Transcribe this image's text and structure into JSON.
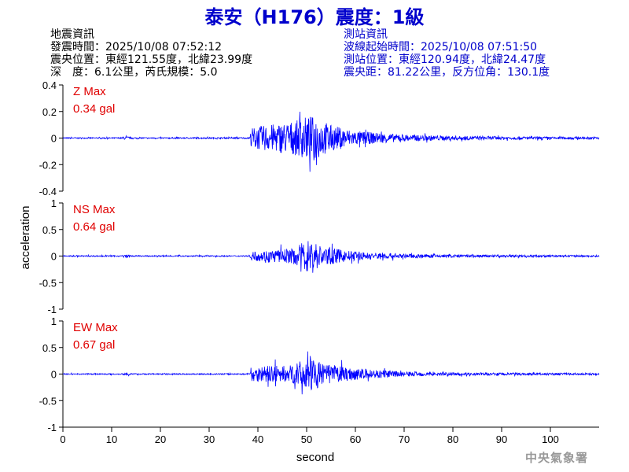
{
  "title": "泰安（H176）震度：1級",
  "quake_info": {
    "heading": "地震資訊",
    "origin_time": "發震時間：2025/10/08 07:52:12",
    "epicenter": "震央位置：東經121.55度，北緯23.99度",
    "depth_magnitude": "深　度：6.1公里，芮氏規模：5.0"
  },
  "station_info": {
    "heading": "測站資訊",
    "wave_start": "波線起始時間：2025/10/08 07:51:50",
    "station_location": "測站位置：東經120.94度，北緯24.47度",
    "distance_azimuth": "震央距：81.22公里，反方位角：130.1度"
  },
  "agency": "中央氣象署",
  "colors": {
    "title": "#0000cc",
    "trace": "#0000ff",
    "max_label": "#e00000",
    "station_info": "#0000cc"
  },
  "chart_data": {
    "type": "line",
    "xlabel": "second",
    "ylabel": "acceleration",
    "x_range": [
      0,
      110
    ],
    "x_ticks": [
      0,
      10,
      20,
      30,
      40,
      50,
      60,
      70,
      80,
      90,
      100
    ],
    "panels": [
      {
        "component": "Z",
        "max_name": "Z Max",
        "max_value": "0.34 gal",
        "ylim": [
          -0.4,
          0.4
        ],
        "yticks": [
          -0.4,
          -0.2,
          0,
          0.2,
          0.4
        ],
        "ytick_labels": [
          "-0.4",
          "-0.2",
          "0",
          "0.2",
          "0.4"
        ],
        "envelope": [
          [
            0,
            0.008
          ],
          [
            12,
            0.008
          ],
          [
            12.5,
            0.02
          ],
          [
            13.5,
            0.02
          ],
          [
            14,
            0.008
          ],
          [
            38.3,
            0.01
          ],
          [
            38.7,
            0.14
          ],
          [
            40,
            0.16
          ],
          [
            44,
            0.2
          ],
          [
            48,
            0.24
          ],
          [
            50,
            0.3
          ],
          [
            52,
            0.3
          ],
          [
            55,
            0.18
          ],
          [
            60,
            0.1
          ],
          [
            65,
            0.07
          ],
          [
            70,
            0.045
          ],
          [
            80,
            0.03
          ],
          [
            90,
            0.022
          ],
          [
            100,
            0.018
          ],
          [
            110,
            0.015
          ]
        ]
      },
      {
        "component": "NS",
        "max_name": "NS Max",
        "max_value": "0.64 gal",
        "ylim": [
          -1,
          1
        ],
        "yticks": [
          -1,
          -0.5,
          0,
          0.5,
          1
        ],
        "ytick_labels": [
          "-1",
          "-0.5",
          "0",
          "0.5",
          "1"
        ],
        "envelope": [
          [
            0,
            0.02
          ],
          [
            12,
            0.02
          ],
          [
            12.5,
            0.04
          ],
          [
            13.5,
            0.04
          ],
          [
            14,
            0.02
          ],
          [
            38.3,
            0.02
          ],
          [
            38.7,
            0.15
          ],
          [
            42,
            0.2
          ],
          [
            47,
            0.25
          ],
          [
            50,
            0.55
          ],
          [
            51,
            0.62
          ],
          [
            53,
            0.35
          ],
          [
            56,
            0.25
          ],
          [
            60,
            0.15
          ],
          [
            70,
            0.07
          ],
          [
            80,
            0.05
          ],
          [
            100,
            0.035
          ],
          [
            110,
            0.03
          ]
        ]
      },
      {
        "component": "EW",
        "max_name": "EW Max",
        "max_value": "0.67 gal",
        "ylim": [
          -1,
          1
        ],
        "yticks": [
          -1,
          -0.5,
          0,
          0.5,
          1
        ],
        "ytick_labels": [
          "-1",
          "-0.5",
          "0",
          "0.5",
          "1"
        ],
        "envelope": [
          [
            0,
            0.02
          ],
          [
            12,
            0.02
          ],
          [
            12.5,
            0.04
          ],
          [
            13.5,
            0.04
          ],
          [
            14,
            0.02
          ],
          [
            38.3,
            0.02
          ],
          [
            38.7,
            0.25
          ],
          [
            42,
            0.28
          ],
          [
            47,
            0.3
          ],
          [
            50,
            0.55
          ],
          [
            51,
            0.65
          ],
          [
            53,
            0.35
          ],
          [
            56,
            0.3
          ],
          [
            60,
            0.2
          ],
          [
            70,
            0.08
          ],
          [
            80,
            0.05
          ],
          [
            100,
            0.04
          ],
          [
            110,
            0.035
          ]
        ]
      }
    ]
  }
}
